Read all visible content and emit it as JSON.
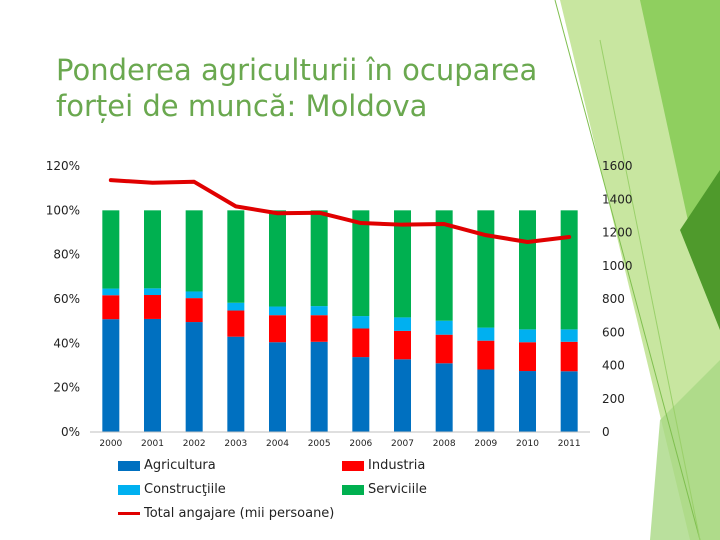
{
  "title": "Ponderea agriculturii în ocuparea forței de muncă: Moldova",
  "colors": {
    "agricultura": "#0070c0",
    "industria": "#ff0000",
    "constructii": "#00b0f0",
    "servicii": "#00b050",
    "total": "#e00000",
    "title": "#6aa84f",
    "deco_light": "#c8e6a0",
    "deco_mid": "#8fcf5f",
    "deco_dark": "#4f9a2c"
  },
  "legend": {
    "agricultura": "Agricultura",
    "industria": "Industria",
    "constructii": "Construcţiile",
    "servicii": "Serviciile",
    "total": "Total angajare (mii persoane)"
  },
  "chart_data": {
    "type": "bar",
    "stacked": true,
    "categories": [
      "2000",
      "2001",
      "2002",
      "2003",
      "2004",
      "2005",
      "2006",
      "2007",
      "2008",
      "2009",
      "2010",
      "2011"
    ],
    "series": [
      {
        "name": "Agricultura",
        "axis": "left",
        "values": [
          50.9,
          51.0,
          49.6,
          43.0,
          40.5,
          40.7,
          33.8,
          32.8,
          31.0,
          28.2,
          27.5,
          27.4
        ]
      },
      {
        "name": "Industria",
        "axis": "left",
        "values": [
          10.8,
          10.8,
          10.8,
          11.8,
          12.2,
          12.0,
          12.9,
          12.8,
          12.9,
          13.0,
          13.0,
          13.3
        ]
      },
      {
        "name": "Construcţiile",
        "axis": "left",
        "values": [
          3.0,
          3.0,
          3.0,
          3.5,
          3.9,
          4.1,
          5.6,
          6.1,
          6.3,
          5.9,
          5.8,
          5.6
        ]
      },
      {
        "name": "Serviciile",
        "axis": "left",
        "values": [
          35.3,
          35.2,
          36.6,
          41.7,
          43.4,
          43.2,
          47.7,
          48.3,
          49.8,
          52.9,
          53.7,
          53.7
        ]
      },
      {
        "name": "Total angajare (mii persoane)",
        "type": "line",
        "axis": "right",
        "values": [
          1515,
          1499,
          1505,
          1357,
          1316,
          1319,
          1257,
          1247,
          1251,
          1184,
          1143,
          1173
        ]
      }
    ],
    "ylabel_left": "",
    "ylabel_right": "",
    "ylim_left": [
      0,
      120
    ],
    "ylim_right": [
      0,
      1600
    ],
    "yticks_left": [
      "0%",
      "20%",
      "40%",
      "60%",
      "80%",
      "100%",
      "120%"
    ],
    "yticks_right": [
      "0",
      "200",
      "400",
      "600",
      "800",
      "1000",
      "1200",
      "1400",
      "1600"
    ],
    "grid": false,
    "legend_position": "bottom"
  }
}
